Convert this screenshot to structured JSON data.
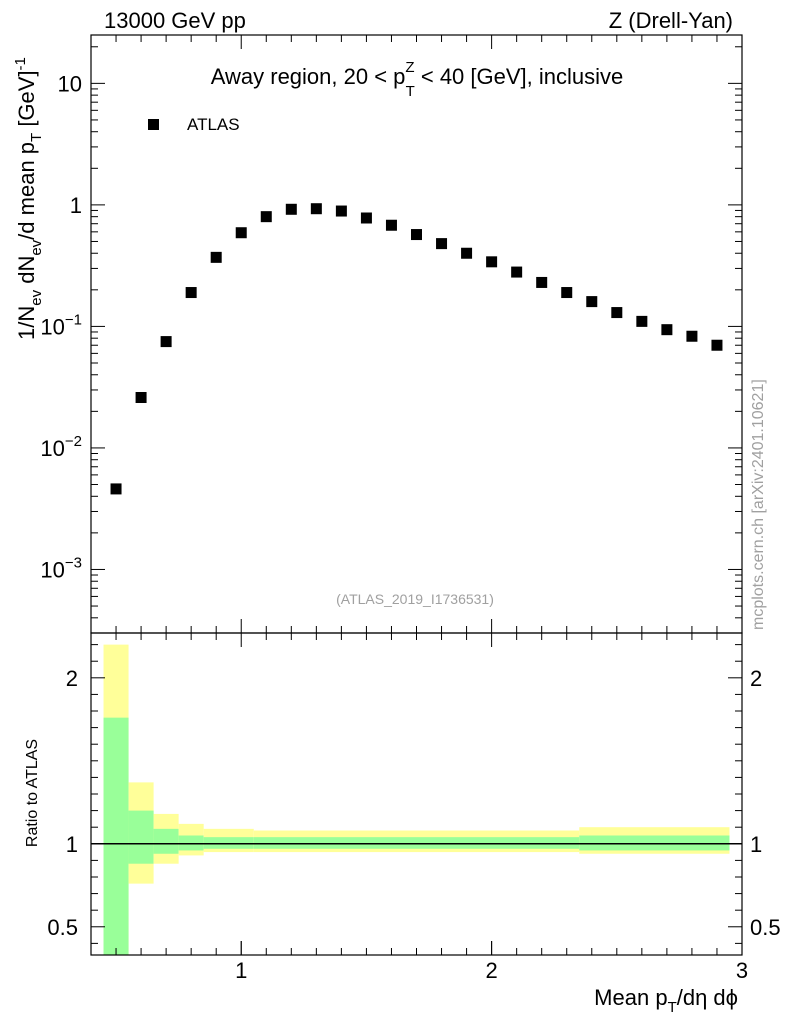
{
  "header": {
    "left": "13000 GeV pp",
    "right": "Z (Drell-Yan)",
    "watermark": "mcplots.cern.ch [arXiv:2401.10621]"
  },
  "chart_data": {
    "type": "scatter",
    "title": "Away region, 20 < p_T^Z < 40 [GeV], inclusive",
    "title_parts": {
      "pre": "Away region, 20 < p",
      "sup": "Z",
      "sub": "T",
      "post": " < 40 [GeV], inclusive"
    },
    "analysis_label": "(ATLAS_2019_I1736531)",
    "legend": {
      "entries": [
        "ATLAS"
      ],
      "placement": "top-left"
    },
    "xlabel": {
      "pre": "Mean p",
      "sub": "T",
      "post": "/dη dϕ"
    },
    "ylabel": {
      "a": "1/N",
      "a_sub": "ev",
      "b": " dN",
      "b_sub": "ev",
      "c": "/d mean p",
      "c_sub": "T",
      "d": " [GeV]",
      "d_sup": "-1"
    },
    "ratio_ylabel": "Ratio to ATLAS",
    "xlim": [
      0.4,
      3.0
    ],
    "ylim": [
      0.0003,
      25
    ],
    "ratio_ylim": [
      0.33,
      2.27
    ],
    "xticks": [
      1,
      2,
      3
    ],
    "yticks": [
      {
        "value": 10,
        "label": "10",
        "exp": ""
      },
      {
        "value": 1,
        "label": "1",
        "exp": ""
      },
      {
        "value": 0.1,
        "label": "10",
        "exp": "−1"
      },
      {
        "value": 0.01,
        "label": "10",
        "exp": "−2"
      },
      {
        "value": 0.001,
        "label": "10",
        "exp": "−3"
      }
    ],
    "ratio_yticks": [
      0.5,
      1,
      2
    ],
    "series": [
      {
        "name": "ATLAS",
        "x": [
          0.5,
          0.6,
          0.7,
          0.8,
          0.9,
          1.0,
          1.1,
          1.2,
          1.3,
          1.4,
          1.5,
          1.6,
          1.7,
          1.8,
          1.9,
          2.0,
          2.1,
          2.2,
          2.3,
          2.4,
          2.5,
          2.6,
          2.7,
          2.8,
          2.9
        ],
        "values": [
          0.0046,
          0.026,
          0.075,
          0.19,
          0.37,
          0.59,
          0.8,
          0.92,
          0.93,
          0.89,
          0.78,
          0.68,
          0.57,
          0.48,
          0.4,
          0.34,
          0.28,
          0.23,
          0.19,
          0.16,
          0.13,
          0.11,
          0.094,
          0.083,
          0.07
        ]
      }
    ],
    "ratio_bands": [
      {
        "x0": 0.45,
        "x1": 0.55,
        "yellow": [
          0.33,
          2.2
        ],
        "green": [
          0.33,
          1.76
        ]
      },
      {
        "x0": 0.55,
        "x1": 0.65,
        "yellow": [
          0.76,
          1.37
        ],
        "green": [
          0.88,
          1.2
        ]
      },
      {
        "x0": 0.65,
        "x1": 0.75,
        "yellow": [
          0.88,
          1.18
        ],
        "green": [
          0.94,
          1.09
        ]
      },
      {
        "x0": 0.75,
        "x1": 0.85,
        "yellow": [
          0.93,
          1.12
        ],
        "green": [
          0.96,
          1.05
        ]
      },
      {
        "x0": 0.85,
        "x1": 1.05,
        "yellow": [
          0.95,
          1.09
        ],
        "green": [
          0.97,
          1.04
        ]
      },
      {
        "x0": 1.05,
        "x1": 2.35,
        "yellow": [
          0.95,
          1.08
        ],
        "green": [
          0.97,
          1.04
        ]
      },
      {
        "x0": 2.35,
        "x1": 2.95,
        "yellow": [
          0.94,
          1.1
        ],
        "green": [
          0.96,
          1.05
        ]
      }
    ]
  }
}
